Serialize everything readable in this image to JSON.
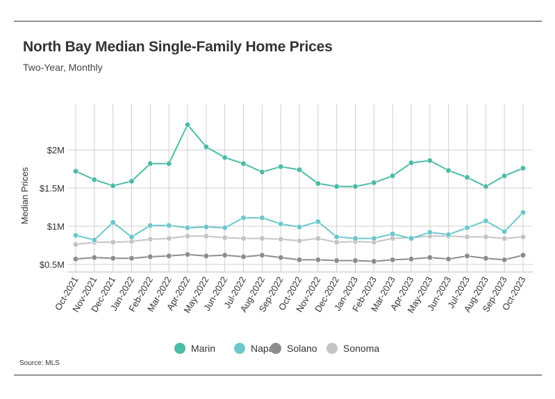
{
  "chart_data": {
    "type": "line",
    "title": "North Bay Median Single-Family Home Prices",
    "subtitle": "Two-Year, Monthly",
    "ylabel": "Median Prices",
    "xlabel": "",
    "source": "Source: MLS",
    "ylim": [
      0.4,
      2.6
    ],
    "yticks": [
      {
        "value": 0.5,
        "label": "$0.5M"
      },
      {
        "value": 1.0,
        "label": "$1M"
      },
      {
        "value": 1.5,
        "label": "$1.5M"
      },
      {
        "value": 2.0,
        "label": "$2M"
      }
    ],
    "grid": true,
    "legend_position": "bottom",
    "categories": [
      "Oct-2021",
      "Nov-2021",
      "Dec-2021",
      "Jan-2022",
      "Feb-2022",
      "Mar-2022",
      "Apr-2022",
      "May-2022",
      "Jun-2022",
      "Jul-2022",
      "Aug-2022",
      "Sep-2022",
      "Oct-2022",
      "Nov-2022",
      "Dec-2022",
      "Jan-2023",
      "Feb-2023",
      "Mar-2023",
      "Apr-2023",
      "May-2023",
      "Jun-2023",
      "Jul-2023",
      "Aug-2023",
      "Sep-2023",
      "Oct-2023"
    ],
    "series": [
      {
        "name": "Marin",
        "color": "#4dbba6",
        "values": [
          1.72,
          1.61,
          1.53,
          1.59,
          1.82,
          1.82,
          2.33,
          2.04,
          1.9,
          1.82,
          1.71,
          1.78,
          1.74,
          1.56,
          1.52,
          1.52,
          1.57,
          1.66,
          1.83,
          1.86,
          1.73,
          1.64,
          1.52,
          1.66,
          1.76
        ]
      },
      {
        "name": "Napa",
        "color": "#6cc7cc",
        "values": [
          0.88,
          0.82,
          1.05,
          0.86,
          1.01,
          1.01,
          0.98,
          0.99,
          0.98,
          1.11,
          1.11,
          1.03,
          0.99,
          1.06,
          0.86,
          0.84,
          0.84,
          0.9,
          0.84,
          0.92,
          0.89,
          0.98,
          1.07,
          0.93,
          1.18
        ]
      },
      {
        "name": "Solano",
        "color": "#8c8c8c",
        "values": [
          0.57,
          0.59,
          0.58,
          0.58,
          0.6,
          0.61,
          0.63,
          0.61,
          0.62,
          0.6,
          0.62,
          0.59,
          0.56,
          0.56,
          0.55,
          0.55,
          0.54,
          0.56,
          0.57,
          0.59,
          0.57,
          0.61,
          0.58,
          0.56,
          0.62
        ]
      },
      {
        "name": "Sonoma",
        "color": "#c4c4c4",
        "values": [
          0.76,
          0.79,
          0.79,
          0.8,
          0.83,
          0.84,
          0.87,
          0.87,
          0.85,
          0.84,
          0.84,
          0.83,
          0.81,
          0.84,
          0.79,
          0.8,
          0.79,
          0.84,
          0.85,
          0.87,
          0.87,
          0.86,
          0.86,
          0.84,
          0.86
        ]
      }
    ]
  }
}
